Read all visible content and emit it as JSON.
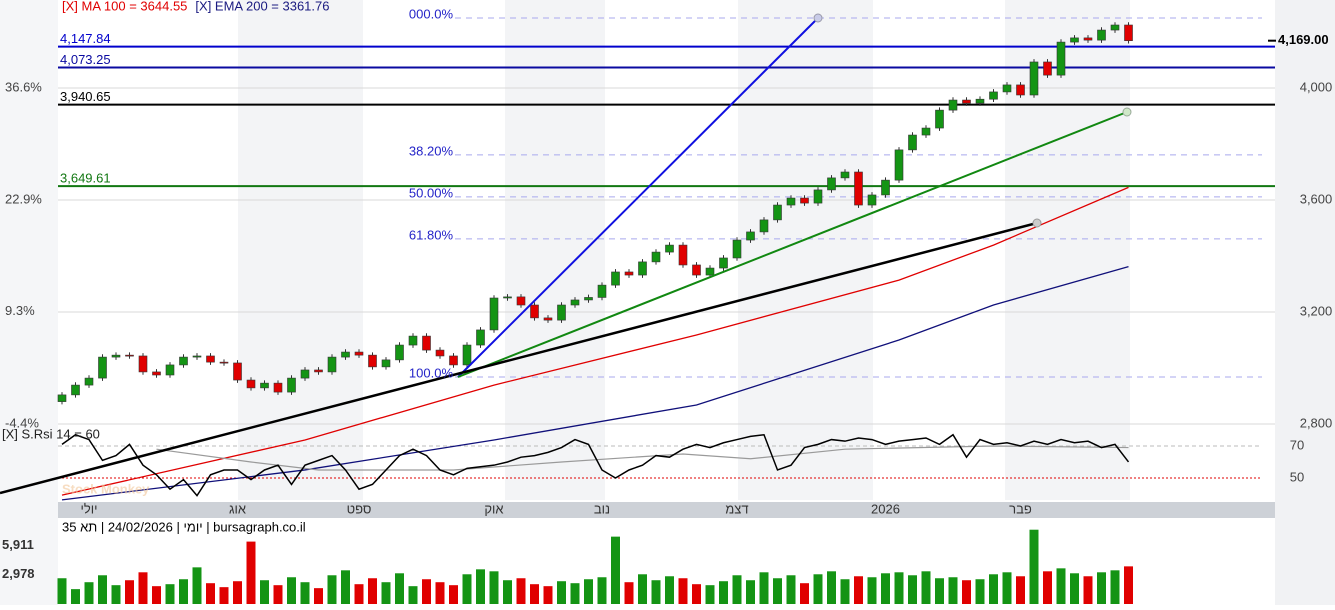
{
  "chart_data": {
    "type": "candlestick",
    "legend": [
      {
        "text": "[X] MA 100 = 3644.55",
        "color": "#e00000"
      },
      {
        "text": "[X] EMA 200 = 3361.76",
        "color": "#1a1a80"
      }
    ],
    "open": [
      2880,
      2904,
      2939,
      2964,
      3039,
      3046,
      3043,
      2986,
      2975,
      3011,
      3039,
      3043,
      3021,
      3018,
      2957,
      2929,
      2946,
      2914,
      2964,
      2993,
      2986,
      3039,
      3057,
      3046,
      3004,
      3029,
      3082,
      3114,
      3064,
      3043,
      3011,
      3082,
      3136,
      3250,
      3254,
      3225,
      3179,
      3171,
      3225,
      3243,
      3252,
      3296,
      3343,
      3332,
      3379,
      3414,
      3439,
      3368,
      3332,
      3357,
      3393,
      3457,
      3486,
      3529,
      3582,
      3607,
      3589,
      3636,
      3679,
      3700,
      3582,
      3618,
      3671,
      3779,
      3832,
      3857,
      3921,
      3957,
      3946,
      3960,
      3986,
      4011,
      3975,
      4093,
      4046,
      4164,
      4179,
      4171,
      4207,
      4225
    ],
    "high": [
      2914,
      2949,
      2974,
      3049,
      3056,
      3056,
      3053,
      2996,
      3021,
      3049,
      3053,
      3053,
      3031,
      3028,
      2967,
      2956,
      2956,
      2974,
      3003,
      3003,
      3049,
      3067,
      3067,
      3056,
      3039,
      3092,
      3124,
      3124,
      3074,
      3053,
      3092,
      3146,
      3260,
      3264,
      3264,
      3235,
      3189,
      3235,
      3253,
      3262,
      3306,
      3353,
      3353,
      3389,
      3424,
      3449,
      3449,
      3378,
      3367,
      3403,
      3467,
      3496,
      3539,
      3592,
      3617,
      3617,
      3646,
      3689,
      3710,
      3710,
      3628,
      3681,
      3789,
      3842,
      3867,
      3931,
      3967,
      3967,
      3970,
      3996,
      4021,
      4021,
      4103,
      4103,
      4174,
      4189,
      4189,
      4217,
      4235,
      4235
    ],
    "low": [
      2870,
      2894,
      2929,
      2954,
      3029,
      3033,
      2976,
      2965,
      2965,
      3001,
      3029,
      3011,
      3008,
      2947,
      2919,
      2919,
      2904,
      2904,
      2954,
      2976,
      2976,
      3029,
      3036,
      2994,
      2994,
      3019,
      3072,
      3054,
      3033,
      3001,
      3001,
      3072,
      3126,
      3240,
      3215,
      3169,
      3161,
      3161,
      3215,
      3233,
      3242,
      3286,
      3322,
      3322,
      3369,
      3404,
      3358,
      3322,
      3322,
      3347,
      3383,
      3447,
      3476,
      3519,
      3572,
      3579,
      3579,
      3626,
      3669,
      3572,
      3572,
      3608,
      3661,
      3769,
      3822,
      3847,
      3911,
      3936,
      3936,
      3950,
      3976,
      3965,
      3965,
      4036,
      4036,
      4154,
      4161,
      4161,
      4197,
      4159
    ],
    "close": [
      2904,
      2939,
      2964,
      3039,
      3046,
      3043,
      2986,
      2975,
      3011,
      3039,
      3043,
      3021,
      3018,
      2957,
      2929,
      2946,
      2914,
      2964,
      2993,
      2986,
      3039,
      3057,
      3046,
      3004,
      3029,
      3082,
      3114,
      3064,
      3043,
      3011,
      3082,
      3136,
      3250,
      3254,
      3225,
      3179,
      3171,
      3225,
      3243,
      3252,
      3296,
      3343,
      3332,
      3379,
      3414,
      3439,
      3368,
      3332,
      3357,
      3393,
      3457,
      3486,
      3529,
      3582,
      3607,
      3589,
      3636,
      3679,
      3700,
      3582,
      3618,
      3671,
      3779,
      3832,
      3857,
      3921,
      3957,
      3946,
      3960,
      3986,
      4011,
      3975,
      4093,
      4046,
      4164,
      4179,
      4171,
      4207,
      4225,
      4169
    ],
    "up_color": "#149414",
    "down_color": "#e00000",
    "ylim": [
      2528.6,
      4314.3
    ],
    "yticks": [
      {
        "value": 2800,
        "label": "2,800"
      },
      {
        "value": 3200,
        "label": "3,200"
      },
      {
        "value": 3600,
        "label": "3,600"
      },
      {
        "value": 4000,
        "label": "4,000"
      }
    ],
    "y2lim": [
      -13.67,
      47.34
    ],
    "y2ticks": [
      {
        "value": -4.4,
        "label": "-4.4%"
      },
      {
        "value": 9.3,
        "label": "9.3%"
      },
      {
        "value": 22.9,
        "label": "22.9%"
      },
      {
        "value": 36.6,
        "label": "36.6%"
      }
    ],
    "grid": true,
    "last_price": {
      "value": 4169,
      "label": "4,169.00"
    },
    "levels": [
      {
        "value": 4147.84,
        "label": "4,147.84",
        "color": "#0000cc"
      },
      {
        "value": 4073.25,
        "label": "4,073.25",
        "color": "#0a0aa0"
      },
      {
        "value": 3940.65,
        "label": "3,940.65",
        "color": "#000000"
      },
      {
        "value": 3649.61,
        "label": "3,649.61",
        "color": "#117711"
      }
    ],
    "fib_levels": [
      {
        "value": 4250,
        "label": "000.0%"
      },
      {
        "value": 3761,
        "label": "38.20%"
      },
      {
        "value": 3611,
        "label": "50.00%"
      },
      {
        "value": 3461,
        "label": "61.80%"
      },
      {
        "value": 2968,
        "label": "100.0%"
      }
    ],
    "lines": [
      {
        "color": "#e00000",
        "x": [
          0,
          18,
          32,
          47,
          62,
          69,
          79
        ],
        "values": [
          2546,
          2743,
          2939,
          3118,
          3314,
          3439,
          3645
        ]
      },
      {
        "color": "#10107a",
        "x": [
          0,
          18,
          32,
          47,
          62,
          69,
          79
        ],
        "values": [
          2529,
          2636,
          2743,
          2868,
          3100,
          3225,
          3362
        ]
      }
    ],
    "months": {
      "at": [
        2,
        13,
        22,
        32,
        40,
        50,
        61,
        71
      ],
      "labels": [
        "יולי",
        "אוג",
        "ספט",
        "אוק",
        "נוב",
        "דצמ",
        "2026",
        "פבר"
      ]
    },
    "footer": "יומי | 24/02/2026 | תא 35 | bursagraph.co.il",
    "watermark": "Stock Monkey",
    "rsi": {
      "label": "[X] S.Rsi 14 = 60",
      "values": [
        71,
        77,
        74,
        61,
        64,
        71,
        58,
        52,
        43,
        49,
        39,
        52,
        55,
        55,
        49,
        55,
        58,
        46,
        58,
        61,
        64,
        55,
        43,
        46,
        55,
        64,
        68,
        64,
        55,
        52,
        56,
        57,
        58,
        60,
        63,
        64,
        66,
        69,
        74,
        71,
        55,
        50,
        55,
        58,
        64,
        63,
        68,
        71,
        69,
        72,
        74,
        76,
        77,
        55,
        58,
        69,
        71,
        74,
        73,
        75,
        74,
        71,
        73,
        74,
        75,
        71,
        77,
        63,
        74,
        71,
        72,
        70,
        73,
        71,
        74,
        72,
        73,
        69,
        71,
        60
      ],
      "avg": {
        "x": [
          7,
          14,
          19,
          29,
          37,
          46,
          51,
          58,
          69,
          79
        ],
        "values": [
          68,
          60,
          55,
          55,
          60,
          65,
          62,
          68,
          70,
          69
        ]
      },
      "ylim": [
        36.25,
        83.1
      ],
      "yticks": [
        70,
        50
      ]
    },
    "volume": {
      "values": [
        2600,
        1500,
        2200,
        2900,
        1900,
        2400,
        3200,
        1800,
        2000,
        2500,
        3700,
        2100,
        1700,
        2300,
        6300,
        2400,
        1900,
        2700,
        2200,
        1600,
        2900,
        3400,
        2000,
        2600,
        2200,
        3100,
        1800,
        2500,
        2200,
        1900,
        3000,
        3500,
        3300,
        2400,
        2600,
        2000,
        1800,
        2300,
        2100,
        2500,
        2700,
        6800,
        2200,
        3000,
        2400,
        2800,
        2600,
        2000,
        1900,
        2300,
        2900,
        2400,
        3200,
        2600,
        2900,
        2100,
        3000,
        3300,
        2500,
        2800,
        2700,
        3100,
        3200,
        2900,
        3300,
        2600,
        2700,
        2400,
        2500,
        3000,
        3200,
        2800,
        7500,
        3300,
        3600,
        3100,
        2800,
        3200,
        3400,
        3800
      ],
      "ylim": [
        0,
        8480
      ],
      "yticks": [
        {
          "value": 2978,
          "label": "2,978"
        },
        {
          "value": 5911,
          "label": "5,911"
        }
      ]
    }
  }
}
